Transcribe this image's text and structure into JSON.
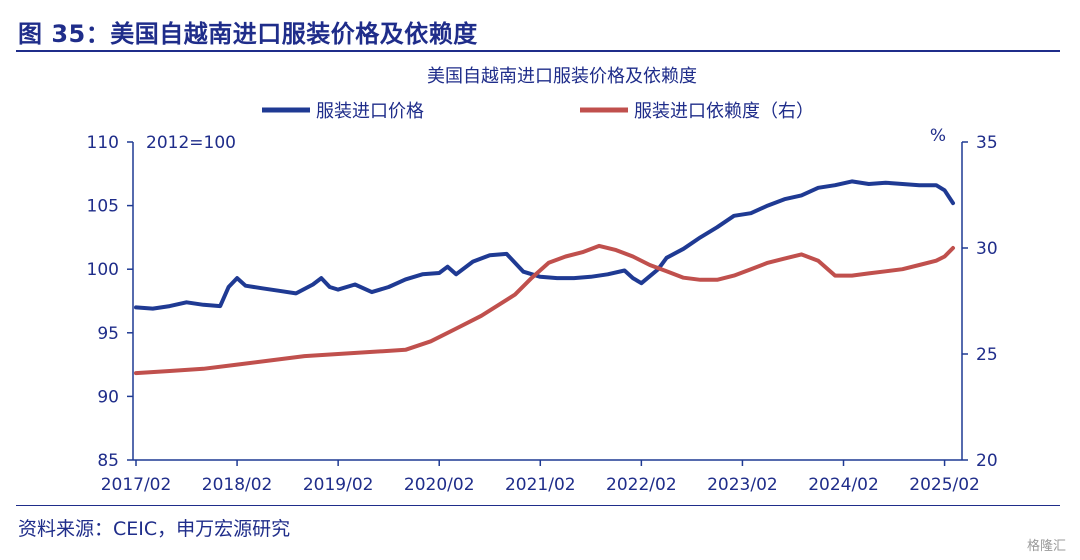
{
  "figure": {
    "title": "图 35：美国自越南进口服装价格及依赖度",
    "source": "资料来源：CEIC，申万宏源研究",
    "watermark": "格隆汇"
  },
  "chart_data": {
    "type": "line",
    "title": "美国自越南进口服装价格及依赖度",
    "base_note": "2012=100",
    "right_unit": "%",
    "x_ticks": [
      "2017/02",
      "2018/02",
      "2019/02",
      "2020/02",
      "2021/02",
      "2022/02",
      "2023/02",
      "2024/02",
      "2025/02"
    ],
    "x_range": [
      "2017/02",
      "2025/03"
    ],
    "ylim_left": [
      85,
      110
    ],
    "yticks_left": [
      85,
      90,
      95,
      100,
      105,
      110
    ],
    "ylim_right": [
      20,
      35
    ],
    "yticks_right": [
      20,
      25,
      30,
      35
    ],
    "series": [
      {
        "name": "服装进口价格",
        "axis": "left",
        "color": "#1f3a93",
        "points": [
          [
            "2017-02",
            97.0
          ],
          [
            "2017-04",
            96.9
          ],
          [
            "2017-06",
            97.1
          ],
          [
            "2017-08",
            97.4
          ],
          [
            "2017-10",
            97.2
          ],
          [
            "2017-12",
            97.1
          ],
          [
            "2018-01",
            98.6
          ],
          [
            "2018-02",
            99.3
          ],
          [
            "2018-03",
            98.7
          ],
          [
            "2018-05",
            98.5
          ],
          [
            "2018-07",
            98.3
          ],
          [
            "2018-09",
            98.1
          ],
          [
            "2018-11",
            98.8
          ],
          [
            "2018-12",
            99.3
          ],
          [
            "2019-01",
            98.6
          ],
          [
            "2019-02",
            98.4
          ],
          [
            "2019-04",
            98.8
          ],
          [
            "2019-06",
            98.2
          ],
          [
            "2019-08",
            98.6
          ],
          [
            "2019-10",
            99.2
          ],
          [
            "2019-12",
            99.6
          ],
          [
            "2020-02",
            99.7
          ],
          [
            "2020-03",
            100.2
          ],
          [
            "2020-04",
            99.6
          ],
          [
            "2020-06",
            100.6
          ],
          [
            "2020-08",
            101.1
          ],
          [
            "2020-10",
            101.2
          ],
          [
            "2020-12",
            99.8
          ],
          [
            "2021-02",
            99.4
          ],
          [
            "2021-04",
            99.3
          ],
          [
            "2021-06",
            99.3
          ],
          [
            "2021-08",
            99.4
          ],
          [
            "2021-10",
            99.6
          ],
          [
            "2021-12",
            99.9
          ],
          [
            "2022-01",
            99.3
          ],
          [
            "2022-02",
            98.9
          ],
          [
            "2022-04",
            100.0
          ],
          [
            "2022-05",
            100.9
          ],
          [
            "2022-07",
            101.6
          ],
          [
            "2022-09",
            102.5
          ],
          [
            "2022-11",
            103.3
          ],
          [
            "2023-01",
            104.2
          ],
          [
            "2023-03",
            104.4
          ],
          [
            "2023-05",
            105.0
          ],
          [
            "2023-07",
            105.5
          ],
          [
            "2023-09",
            105.8
          ],
          [
            "2023-11",
            106.4
          ],
          [
            "2024-01",
            106.6
          ],
          [
            "2024-03",
            106.9
          ],
          [
            "2024-05",
            106.7
          ],
          [
            "2024-07",
            106.8
          ],
          [
            "2024-09",
            106.7
          ],
          [
            "2024-11",
            106.6
          ],
          [
            "2025-01",
            106.6
          ],
          [
            "2025-02",
            106.2
          ],
          [
            "2025-03",
            105.2
          ]
        ]
      },
      {
        "name": "服装进口依赖度（右）",
        "axis": "right",
        "color": "#c0504d",
        "points": [
          [
            "2017-02",
            24.1
          ],
          [
            "2017-06",
            24.2
          ],
          [
            "2017-10",
            24.3
          ],
          [
            "2018-02",
            24.5
          ],
          [
            "2018-06",
            24.7
          ],
          [
            "2018-10",
            24.9
          ],
          [
            "2019-02",
            25.0
          ],
          [
            "2019-06",
            25.1
          ],
          [
            "2019-10",
            25.2
          ],
          [
            "2020-01",
            25.6
          ],
          [
            "2020-04",
            26.2
          ],
          [
            "2020-07",
            26.8
          ],
          [
            "2020-09",
            27.3
          ],
          [
            "2020-11",
            27.8
          ],
          [
            "2021-01",
            28.6
          ],
          [
            "2021-03",
            29.3
          ],
          [
            "2021-05",
            29.6
          ],
          [
            "2021-07",
            29.8
          ],
          [
            "2021-09",
            30.1
          ],
          [
            "2021-11",
            29.9
          ],
          [
            "2022-01",
            29.6
          ],
          [
            "2022-03",
            29.2
          ],
          [
            "2022-05",
            28.9
          ],
          [
            "2022-07",
            28.6
          ],
          [
            "2022-09",
            28.5
          ],
          [
            "2022-11",
            28.5
          ],
          [
            "2023-01",
            28.7
          ],
          [
            "2023-03",
            29.0
          ],
          [
            "2023-05",
            29.3
          ],
          [
            "2023-07",
            29.5
          ],
          [
            "2023-09",
            29.7
          ],
          [
            "2023-11",
            29.4
          ],
          [
            "2024-01",
            28.7
          ],
          [
            "2024-03",
            28.7
          ],
          [
            "2024-05",
            28.8
          ],
          [
            "2024-07",
            28.9
          ],
          [
            "2024-09",
            29.0
          ],
          [
            "2024-11",
            29.2
          ],
          [
            "2025-01",
            29.4
          ],
          [
            "2025-02",
            29.6
          ],
          [
            "2025-03",
            30.0
          ]
        ]
      }
    ]
  }
}
